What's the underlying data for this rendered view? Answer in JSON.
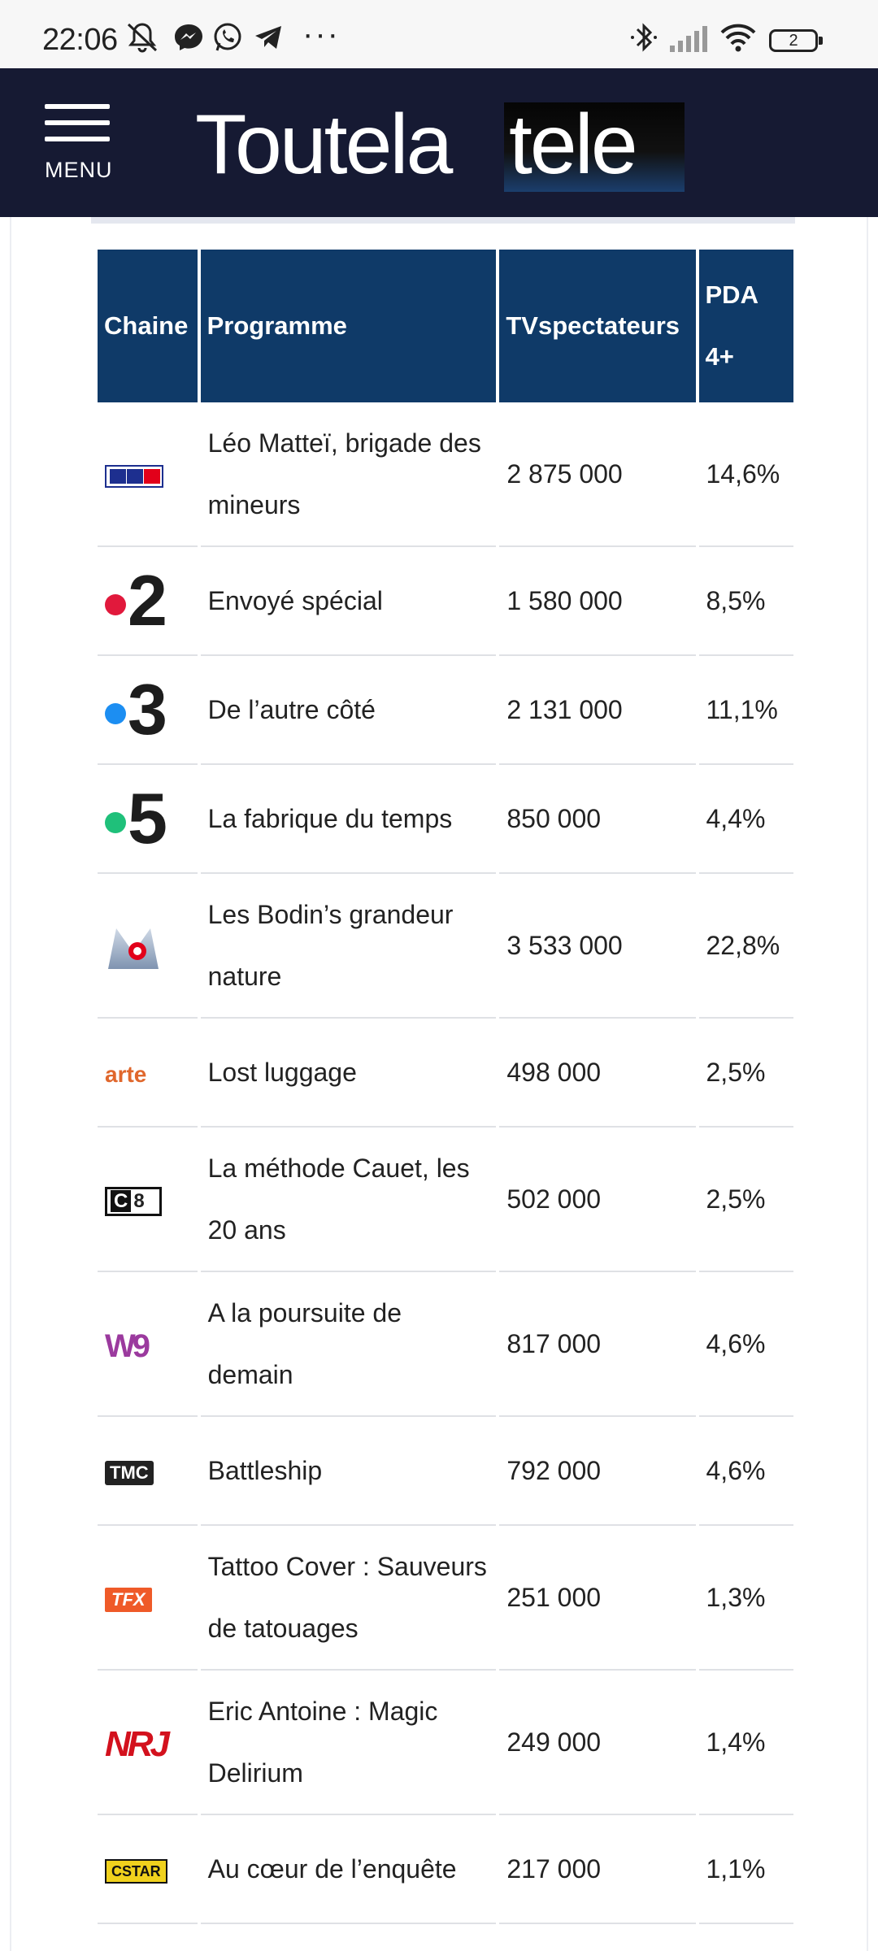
{
  "statusbar": {
    "time": "22:06",
    "battery": "2",
    "icons": [
      "mute-icon",
      "messenger-icon",
      "whatsapp-icon",
      "telegram-icon",
      "more-icon",
      "bluetooth-icon",
      "signal-icon",
      "wifi-icon",
      "battery-icon"
    ]
  },
  "header": {
    "menu_label": "MENU",
    "logo_left": "Toutela",
    "logo_right": "tele"
  },
  "table": {
    "headers": {
      "chaine": "Chaine",
      "programme": "Programme",
      "tvspectateurs": "TVspectateurs",
      "pda_line1": "PDA",
      "pda_line2": "4+"
    },
    "rows": [
      {
        "channel": "TF1",
        "program": "Léo Matteï, brigade des mineurs",
        "viewers": "2 875 000",
        "share": "14,6%"
      },
      {
        "channel": "France 2",
        "program": "Envoyé spécial",
        "viewers": "1 580 000",
        "share": "8,5%"
      },
      {
        "channel": "France 3",
        "program": "De l’autre côté",
        "viewers": "2 131 000",
        "share": "11,1%"
      },
      {
        "channel": "France 5",
        "program": "La fabrique du temps",
        "viewers": "850 000",
        "share": "4,4%"
      },
      {
        "channel": "M6",
        "program": "Les Bodin’s grandeur nature",
        "viewers": "3 533 000",
        "share": "22,8%"
      },
      {
        "channel": "arte",
        "program": "Lost luggage",
        "viewers": "498 000",
        "share": "2,5%"
      },
      {
        "channel": "C8",
        "program": "La méthode Cauet, les 20 ans",
        "viewers": "502 000",
        "share": "2,5%"
      },
      {
        "channel": "W9",
        "program": "A la poursuite de demain",
        "viewers": "817 000",
        "share": "4,6%"
      },
      {
        "channel": "TMC",
        "program": "Battleship",
        "viewers": "792 000",
        "share": "4,6%"
      },
      {
        "channel": "TFX",
        "program": "Tattoo Cover : Sauveurs de tatouages",
        "viewers": "251 000",
        "share": "1,3%"
      },
      {
        "channel": "NRJ 12",
        "program": "Eric Antoine : Magic Delirium",
        "viewers": "249 000",
        "share": "1,4%"
      },
      {
        "channel": "CSTAR",
        "program": "Au cœur de l’enquête",
        "viewers": "217 000",
        "share": "1,1%"
      }
    ]
  },
  "logos": {
    "tf1": "TF1",
    "f2": "2",
    "f3": "3",
    "f5": "5",
    "arte": "arte",
    "c8_c": "C",
    "c8_8": "8",
    "w9": "W9",
    "tmc": "TMC",
    "tfx": "TFX",
    "nrj": "NRJ",
    "cstar": "CSTAR"
  },
  "colors": {
    "header_bg": "#161a33",
    "table_header_bg": "#0f3a68",
    "france2_dot": "#e1193c",
    "france3_dot": "#1c8ef2",
    "france5_dot": "#1fc07a"
  }
}
